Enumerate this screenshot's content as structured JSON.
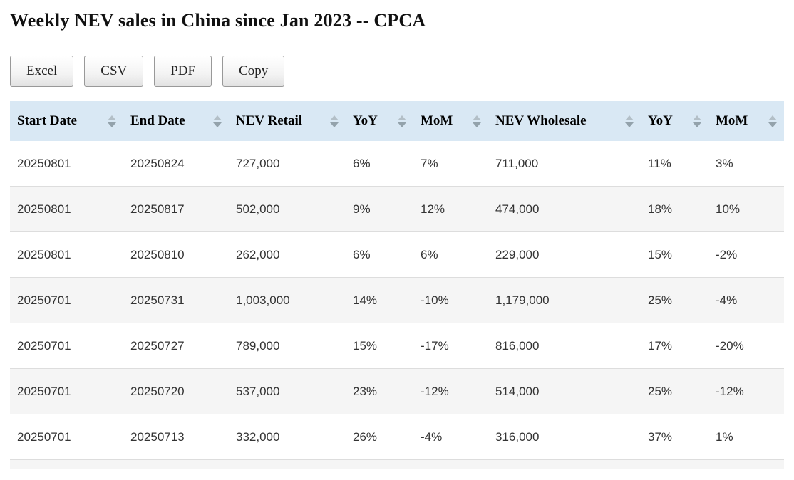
{
  "page": {
    "title": "Weekly NEV sales in China since Jan 2023 -- CPCA"
  },
  "toolbar": {
    "buttons": [
      "Excel",
      "CSV",
      "PDF",
      "Copy"
    ]
  },
  "table": {
    "columns": [
      "Start Date",
      "End Date",
      "NEV Retail",
      "YoY",
      "MoM",
      "NEV Wholesale",
      "YoY",
      "MoM"
    ],
    "rows": [
      [
        "20250801",
        "20250824",
        "727,000",
        "6%",
        "7%",
        "711,000",
        "11%",
        "3%"
      ],
      [
        "20250801",
        "20250817",
        "502,000",
        "9%",
        "12%",
        "474,000",
        "18%",
        "10%"
      ],
      [
        "20250801",
        "20250810",
        "262,000",
        "6%",
        "6%",
        "229,000",
        "15%",
        "-2%"
      ],
      [
        "20250701",
        "20250731",
        "1,003,000",
        "14%",
        "-10%",
        "1,179,000",
        "25%",
        "-4%"
      ],
      [
        "20250701",
        "20250727",
        "789,000",
        "15%",
        "-17%",
        "816,000",
        "17%",
        "-20%"
      ],
      [
        "20250701",
        "20250720",
        "537,000",
        "23%",
        "-12%",
        "514,000",
        "25%",
        "-12%"
      ],
      [
        "20250701",
        "20250713",
        "332,000",
        "26%",
        "-4%",
        "316,000",
        "37%",
        "1%"
      ]
    ]
  },
  "colors": {
    "header_bg": "#d9e8f4",
    "stripe_bg": "#f5f5f5",
    "row_border": "#dddddd",
    "sort_arrow_up": "#b3bfc7",
    "sort_arrow_down": "#93a2ab"
  }
}
